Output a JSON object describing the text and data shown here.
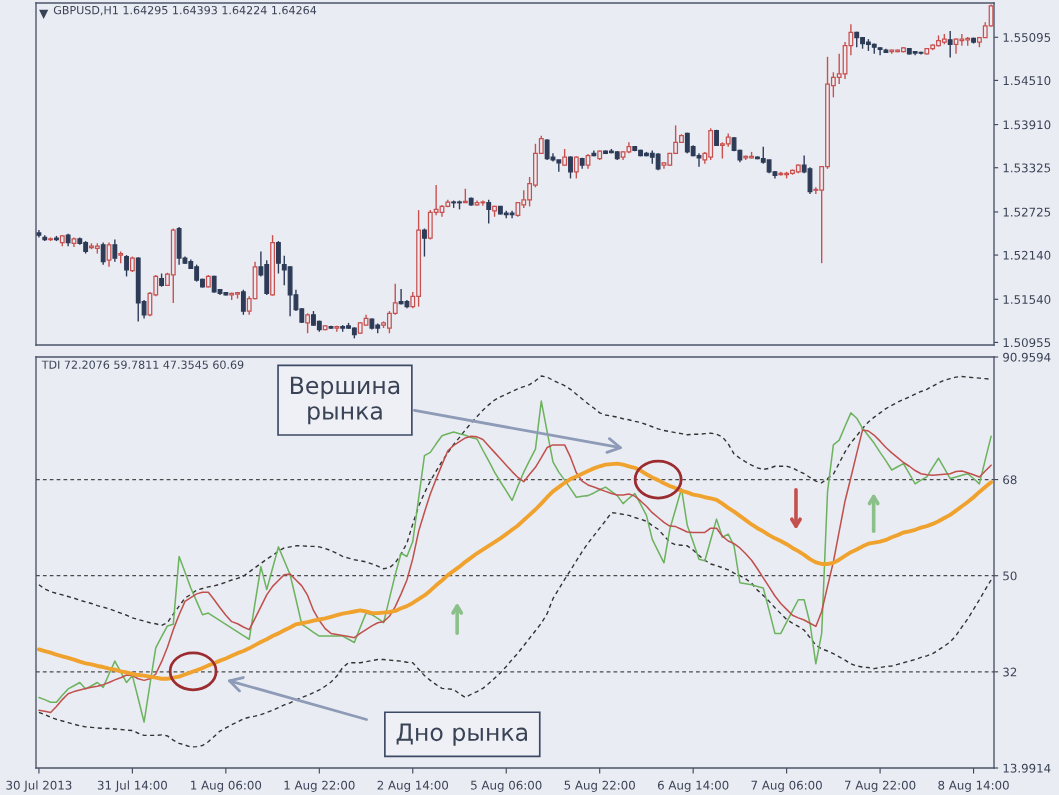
{
  "chart_data": [
    {
      "type": "candlestick",
      "title": "GBPUSD,H1 1.64295 1.64393 1.64224 1.64264",
      "categories": [
        null,
        null,
        null,
        null,
        null,
        null,
        null,
        null,
        null,
        null,
        null,
        null,
        null,
        null,
        null,
        null,
        null,
        null,
        null,
        null,
        null,
        null,
        null,
        null,
        null,
        null,
        null,
        null,
        null,
        null,
        null,
        null,
        null,
        null,
        null,
        null,
        null,
        null,
        null,
        null,
        null,
        null,
        null,
        null,
        null,
        null,
        null,
        null,
        null,
        null,
        null,
        null,
        null,
        null,
        null,
        null,
        null,
        null,
        null,
        null,
        null,
        null,
        null,
        null,
        null,
        null,
        null,
        null,
        null,
        null,
        null,
        null,
        null,
        null,
        null,
        null,
        null,
        null,
        null,
        null,
        null,
        null,
        null,
        null,
        null,
        null,
        null,
        null,
        null,
        null,
        null,
        null,
        null,
        null,
        null,
        null,
        null,
        null,
        null,
        null,
        null,
        null,
        null,
        null,
        null,
        null,
        null,
        null,
        null,
        null,
        null,
        null,
        null,
        null,
        null,
        null,
        null,
        null,
        null,
        null,
        null,
        null,
        null,
        null,
        null,
        null,
        null,
        null,
        null,
        null,
        null,
        null,
        null,
        null,
        null,
        null,
        null,
        null,
        null,
        null,
        null,
        null,
        null,
        null,
        null,
        null,
        null,
        null,
        null,
        null,
        null,
        null,
        null,
        null,
        null,
        null,
        null,
        null,
        null,
        null,
        null,
        null,
        null,
        null
      ],
      "ohlc": [
        [
          1.5244,
          1.5248,
          1.5238,
          1.5241
        ],
        [
          1.5238,
          1.5241,
          1.5233,
          1.5235
        ],
        [
          1.5235,
          1.5238,
          1.5233,
          1.5236
        ],
        [
          1.5237,
          1.524,
          1.5233,
          1.5235
        ],
        [
          1.5231,
          1.5241,
          1.5226,
          1.524
        ],
        [
          1.5241,
          1.5243,
          1.5226,
          1.5231
        ],
        [
          1.523,
          1.5238,
          1.5225,
          1.5236
        ],
        [
          1.5236,
          1.5238,
          1.5228,
          1.523
        ],
        [
          1.5231,
          1.5233,
          1.5216,
          1.5219
        ],
        [
          1.5224,
          1.523,
          1.5222,
          1.5226
        ],
        [
          1.5223,
          1.523,
          1.5216,
          1.5226
        ],
        [
          1.5228,
          1.5231,
          1.5201,
          1.5205
        ],
        [
          1.5207,
          1.5231,
          1.5198,
          1.5228
        ],
        [
          1.5228,
          1.5235,
          1.5205,
          1.521
        ],
        [
          1.5214,
          1.5219,
          1.5203,
          1.5216
        ],
        [
          1.5212,
          1.5214,
          1.5185,
          1.5194
        ],
        [
          1.5193,
          1.5212,
          1.5191,
          1.521
        ],
        [
          1.521,
          1.5211,
          1.5124,
          1.5149
        ],
        [
          1.5151,
          1.5153,
          1.5128,
          1.5133
        ],
        [
          1.5133,
          1.5164,
          1.5131,
          1.5162
        ],
        [
          1.516,
          1.5187,
          1.5158,
          1.5185
        ],
        [
          1.5182,
          1.5189,
          1.5171,
          1.5173
        ],
        [
          1.5173,
          1.519,
          1.5172,
          1.5188
        ],
        [
          1.5187,
          1.525,
          1.5149,
          1.5248
        ],
        [
          1.525,
          1.5252,
          1.5201,
          1.521
        ],
        [
          1.521,
          1.5212,
          1.5202,
          1.5203
        ],
        [
          1.5205,
          1.5208,
          1.5195,
          1.5196
        ],
        [
          1.5198,
          1.5201,
          1.5178,
          1.518
        ],
        [
          1.5181,
          1.5182,
          1.517,
          1.5171
        ],
        [
          1.5171,
          1.5187,
          1.517,
          1.5185
        ],
        [
          1.5185,
          1.5186,
          1.5163,
          1.5164
        ],
        [
          1.5167,
          1.5168,
          1.516,
          1.5162
        ],
        [
          1.5163,
          1.5164,
          1.5159,
          1.516
        ],
        [
          1.516,
          1.5163,
          1.5153,
          1.5162
        ],
        [
          1.5161,
          1.5164,
          1.5155,
          1.5163
        ],
        [
          1.5164,
          1.5167,
          1.5133,
          1.5138
        ],
        [
          1.5138,
          1.5158,
          1.5133,
          1.5155
        ],
        [
          1.5155,
          1.5205,
          1.5154,
          1.5198
        ],
        [
          1.5198,
          1.5219,
          1.5185,
          1.5187
        ],
        [
          1.5201,
          1.5207,
          1.516,
          1.5162
        ],
        [
          1.516,
          1.5241,
          1.5159,
          1.5231
        ],
        [
          1.5231,
          1.5233,
          1.5189,
          1.5203
        ],
        [
          1.5201,
          1.5213,
          1.5173,
          1.5194
        ],
        [
          1.5198,
          1.5199,
          1.5131,
          1.516
        ],
        [
          1.516,
          1.5167,
          1.5138,
          1.514
        ],
        [
          1.5141,
          1.5142,
          1.5122,
          1.5123
        ],
        [
          1.5122,
          1.5135,
          1.5108,
          1.5133
        ],
        [
          1.5133,
          1.5138,
          1.5118,
          1.5119
        ],
        [
          1.5124,
          1.5125,
          1.511,
          1.5113
        ],
        [
          1.5113,
          1.5119,
          1.5112,
          1.5118
        ],
        [
          1.5117,
          1.5118,
          1.5114,
          1.5115
        ],
        [
          1.5115,
          1.5118,
          1.511,
          1.5117
        ],
        [
          1.5117,
          1.5119,
          1.511,
          1.5115
        ],
        [
          1.5118,
          1.5122,
          1.5114,
          1.5115
        ],
        [
          1.5115,
          1.5116,
          1.5101,
          1.5106
        ],
        [
          1.5108,
          1.5123,
          1.5107,
          1.5122
        ],
        [
          1.5119,
          1.5133,
          1.5118,
          1.5128
        ],
        [
          1.5127,
          1.5128,
          1.5113,
          1.5115
        ],
        [
          1.5119,
          1.5121,
          1.5108,
          1.5115
        ],
        [
          1.5119,
          1.5124,
          1.5115,
          1.5122
        ],
        [
          1.5115,
          1.5138,
          1.5108,
          1.5135
        ],
        [
          1.5135,
          1.5175,
          1.5133,
          1.5149
        ],
        [
          1.5151,
          1.5168,
          1.5147,
          1.5148
        ],
        [
          1.5151,
          1.5153,
          1.5142,
          1.5144
        ],
        [
          1.5144,
          1.5164,
          1.5142,
          1.5158
        ],
        [
          1.5158,
          1.5275,
          1.5144,
          1.5248
        ],
        [
          1.5248,
          1.525,
          1.5212,
          1.5237
        ],
        [
          1.5237,
          1.5275,
          1.5235,
          1.5272
        ],
        [
          1.5272,
          1.5309,
          1.5268,
          1.5276
        ],
        [
          1.5272,
          1.5282,
          1.5266,
          1.528
        ],
        [
          1.528,
          1.5289,
          1.5279,
          1.5286
        ],
        [
          1.5286,
          1.5288,
          1.5278,
          1.5285
        ],
        [
          1.5286,
          1.5288,
          1.5276,
          1.5285
        ],
        [
          1.5285,
          1.5304,
          1.5285,
          1.5287
        ],
        [
          1.5291,
          1.5292,
          1.5281,
          1.5282
        ],
        [
          1.5282,
          1.5288,
          1.5281,
          1.5285
        ],
        [
          1.5285,
          1.5288,
          1.5281,
          1.5286
        ],
        [
          1.5285,
          1.5289,
          1.5257,
          1.5276
        ],
        [
          1.5274,
          1.5281,
          1.5266,
          1.528
        ],
        [
          1.528,
          1.528,
          1.5269,
          1.527
        ],
        [
          1.5271,
          1.5274,
          1.5264,
          1.5269
        ],
        [
          1.5271,
          1.5274,
          1.5264,
          1.5269
        ],
        [
          1.5268,
          1.5286,
          1.5266,
          1.5285
        ],
        [
          1.5282,
          1.5302,
          1.5278,
          1.5289
        ],
        [
          1.5289,
          1.532,
          1.528,
          1.5311
        ],
        [
          1.5309,
          1.5365,
          1.5306,
          1.5352
        ],
        [
          1.5352,
          1.5376,
          1.5351,
          1.5372
        ],
        [
          1.537,
          1.5371,
          1.5343,
          1.5345
        ],
        [
          1.5347,
          1.5352,
          1.5341,
          1.5343
        ],
        [
          1.5343,
          1.5343,
          1.5327,
          1.5339
        ],
        [
          1.5336,
          1.5358,
          1.5335,
          1.5347
        ],
        [
          1.5347,
          1.5348,
          1.5318,
          1.5327
        ],
        [
          1.5327,
          1.5348,
          1.5318,
          1.5347
        ],
        [
          1.5345,
          1.5346,
          1.5331,
          1.5336
        ],
        [
          1.5336,
          1.5351,
          1.5331,
          1.5349
        ],
        [
          1.5352,
          1.5356,
          1.5348,
          1.5349
        ],
        [
          1.5345,
          1.5356,
          1.5343,
          1.5355
        ],
        [
          1.5355,
          1.5356,
          1.5351,
          1.5352
        ],
        [
          1.5355,
          1.5358,
          1.5352,
          1.5353
        ],
        [
          1.5354,
          1.5355,
          1.5343,
          1.5345
        ],
        [
          1.5347,
          1.5355,
          1.5343,
          1.5354
        ],
        [
          1.5354,
          1.5367,
          1.5352,
          1.5361
        ],
        [
          1.5361,
          1.5362,
          1.5355,
          1.5356
        ],
        [
          1.5356,
          1.5357,
          1.5348,
          1.5349
        ],
        [
          1.5352,
          1.5354,
          1.5348,
          1.5349
        ],
        [
          1.5352,
          1.5356,
          1.5338,
          1.5347
        ],
        [
          1.5351,
          1.5352,
          1.5329,
          1.5331
        ],
        [
          1.5336,
          1.534,
          1.5331,
          1.5339
        ],
        [
          1.5336,
          1.5352,
          1.5335,
          1.5352
        ],
        [
          1.5352,
          1.539,
          1.5351,
          1.5367
        ],
        [
          1.5367,
          1.5378,
          1.5366,
          1.5376
        ],
        [
          1.5379,
          1.538,
          1.5352,
          1.5354
        ],
        [
          1.5361,
          1.5363,
          1.5348,
          1.5349
        ],
        [
          1.5349,
          1.5352,
          1.5334,
          1.5346
        ],
        [
          1.5343,
          1.5354,
          1.5338,
          1.5352
        ],
        [
          1.5347,
          1.5386,
          1.5343,
          1.5383
        ],
        [
          1.5383,
          1.5384,
          1.5362,
          1.5363
        ],
        [
          1.5363,
          1.5367,
          1.5345,
          1.5365
        ],
        [
          1.5365,
          1.5379,
          1.5361,
          1.5374
        ],
        [
          1.5373,
          1.5374,
          1.5355,
          1.5356
        ],
        [
          1.5356,
          1.5357,
          1.534,
          1.5343
        ],
        [
          1.5346,
          1.5349,
          1.5343,
          1.5348
        ],
        [
          1.5346,
          1.5354,
          1.5345,
          1.5348
        ],
        [
          1.5347,
          1.5348,
          1.5344,
          1.5345
        ],
        [
          1.5345,
          1.5361,
          1.5338,
          1.534
        ],
        [
          1.5343,
          1.5343,
          1.5325,
          1.5327
        ],
        [
          1.5327,
          1.5328,
          1.5318,
          1.5322
        ],
        [
          1.5323,
          1.5327,
          1.5322,
          1.5325
        ],
        [
          1.5323,
          1.5327,
          1.5318,
          1.5325
        ],
        [
          1.5325,
          1.533,
          1.5323,
          1.5329
        ],
        [
          1.5327,
          1.5337,
          1.5325,
          1.5336
        ],
        [
          1.5336,
          1.5349,
          1.5325,
          1.5327
        ],
        [
          1.5331,
          1.5333,
          1.5297,
          1.53
        ],
        [
          1.5302,
          1.5306,
          1.5297,
          1.5303
        ],
        [
          1.5302,
          1.5334,
          1.5203,
          1.5334
        ],
        [
          1.5334,
          1.5483,
          1.5331,
          1.5446
        ],
        [
          1.5444,
          1.5462,
          1.5428,
          1.5455
        ],
        [
          1.5455,
          1.5487,
          1.5446,
          1.546
        ],
        [
          1.546,
          1.5503,
          1.5453,
          1.5498
        ],
        [
          1.5498,
          1.5527,
          1.5485,
          1.5516
        ],
        [
          1.5516,
          1.5517,
          1.5496,
          1.5509
        ],
        [
          1.5509,
          1.5509,
          1.5494,
          1.5501
        ],
        [
          1.5503,
          1.5507,
          1.5491,
          1.55
        ],
        [
          1.55,
          1.5501,
          1.5487,
          1.5496
        ],
        [
          1.5495,
          1.5496,
          1.5485,
          1.5493
        ],
        [
          1.5492,
          1.5494,
          1.5488,
          1.5489
        ],
        [
          1.549,
          1.5493,
          1.5487,
          1.5492
        ],
        [
          1.549,
          1.5493,
          1.5489,
          1.5492
        ],
        [
          1.549,
          1.5496,
          1.5489,
          1.5495
        ],
        [
          1.5494,
          1.5495,
          1.5486,
          1.5487
        ],
        [
          1.549,
          1.5491,
          1.5485,
          1.5488
        ],
        [
          1.5489,
          1.549,
          1.5486,
          1.5488
        ],
        [
          1.5487,
          1.5495,
          1.5486,
          1.5494
        ],
        [
          1.5494,
          1.55,
          1.5492,
          1.5499
        ],
        [
          1.5498,
          1.5512,
          1.5497,
          1.5505
        ],
        [
          1.5503,
          1.5514,
          1.55,
          1.5507
        ],
        [
          1.5506,
          1.5518,
          1.5482,
          1.55
        ],
        [
          1.55,
          1.5508,
          1.5487,
          1.5507
        ],
        [
          1.5505,
          1.5514,
          1.5498,
          1.5507
        ],
        [
          1.5506,
          1.551,
          1.5498,
          1.5508
        ],
        [
          1.5508,
          1.5509,
          1.5501,
          1.5503
        ],
        [
          1.5503,
          1.551,
          1.5496,
          1.5509
        ],
        [
          1.5509,
          1.553,
          1.5509,
          1.5525
        ],
        [
          1.5525,
          1.5554,
          1.5524,
          1.5552
        ]
      ],
      "colors": [
        "#2d3b57",
        "#2d3b57",
        "#c8504e",
        "#2d3b57",
        "#c8504e",
        "#2d3b57",
        "#c8504e",
        "#2d3b57",
        "#2d3b57",
        "#c8504e",
        "#c8504e",
        "#2d3b57",
        "#c8504e",
        "#2d3b57",
        "#c8504e",
        "#2d3b57",
        "#c8504e",
        "#2d3b57",
        "#2d3b57",
        "#c8504e",
        "#c8504e",
        "#2d3b57",
        "#c8504e",
        "#c8504e",
        "#2d3b57",
        "#2d3b57",
        "#2d3b57",
        "#2d3b57",
        "#2d3b57",
        "#c8504e",
        "#2d3b57",
        "#2d3b57",
        "#2d3b57",
        "#c8504e",
        "#c8504e",
        "#2d3b57",
        "#c8504e",
        "#c8504e",
        "#2d3b57",
        "#2d3b57",
        "#c8504e",
        "#2d3b57",
        "#2d3b57",
        "#2d3b57",
        "#2d3b57",
        "#2d3b57",
        "#c8504e",
        "#2d3b57",
        "#2d3b57",
        "#c8504e",
        "#2d3b57",
        "#c8504e",
        "#2d3b57",
        "#2d3b57",
        "#2d3b57",
        "#c8504e",
        "#c8504e",
        "#2d3b57",
        "#2d3b57",
        "#c8504e",
        "#c8504e",
        "#c8504e",
        "#2d3b57",
        "#2d3b57",
        "#c8504e",
        "#c8504e",
        "#2d3b57",
        "#c8504e",
        "#c8504e",
        "#c8504e",
        "#c8504e",
        "#2d3b57",
        "#2d3b57",
        "#c8504e",
        "#2d3b57",
        "#c8504e",
        "#c8504e",
        "#2d3b57",
        "#c8504e",
        "#2d3b57",
        "#2d3b57",
        "#2d3b57",
        "#c8504e",
        "#c8504e",
        "#c8504e",
        "#c8504e",
        "#c8504e",
        "#2d3b57",
        "#2d3b57",
        "#2d3b57",
        "#c8504e",
        "#2d3b57",
        "#c8504e",
        "#2d3b57",
        "#c8504e",
        "#2d3b57",
        "#c8504e",
        "#2d3b57",
        "#2d3b57",
        "#2d3b57",
        "#c8504e",
        "#c8504e",
        "#2d3b57",
        "#2d3b57",
        "#2d3b57",
        "#2d3b57",
        "#2d3b57",
        "#c8504e",
        "#c8504e",
        "#c8504e",
        "#c8504e",
        "#2d3b57",
        "#2d3b57",
        "#2d3b57",
        "#c8504e",
        "#c8504e",
        "#2d3b57",
        "#c8504e",
        "#c8504e",
        "#2d3b57",
        "#2d3b57",
        "#c8504e",
        "#c8504e",
        "#2d3b57",
        "#2d3b57",
        "#2d3b57",
        "#2d3b57",
        "#c8504e",
        "#c8504e",
        "#c8504e",
        "#c8504e",
        "#2d3b57",
        "#2d3b57",
        "#c8504e",
        "#c8504e",
        "#c8504e",
        "#c8504e",
        "#c8504e",
        "#c8504e",
        "#c8504e",
        "#2d3b57",
        "#2d3b57",
        "#2d3b57",
        "#2d3b57",
        "#2d3b57",
        "#2d3b57",
        "#c8504e",
        "#c8504e",
        "#c8504e",
        "#2d3b57",
        "#2d3b57",
        "#2d3b57",
        "#c8504e",
        "#c8504e",
        "#c8504e",
        "#c8504e",
        "#2d3b57",
        "#c8504e",
        "#c8504e",
        "#c8504e",
        "#2d3b57",
        "#c8504e",
        "#c8504e",
        "#c8504e"
      ],
      "ylim": [
        1.5092,
        1.5556
      ],
      "yticks": [
        1.50955,
        {
          "value": 1.5154,
          "label": "1.51540"
        },
        {
          "value": 1.5214,
          "label": "1.52140"
        },
        1.52725,
        1.53325,
        {
          "value": 1.5391,
          "label": "1.53910"
        },
        {
          "value": 1.5451,
          "label": "1.54510"
        },
        1.55095
      ]
    },
    {
      "type": "line",
      "title": "TDI 72.2076 59.7811 47.3545 60.69",
      "categories": [
        "30 Jul 2013",
        null,
        null,
        null,
        null,
        null,
        null,
        null,
        null,
        null,
        null,
        null,
        null,
        null,
        null,
        null,
        "31 Jul 14:00",
        null,
        null,
        null,
        null,
        null,
        null,
        null,
        null,
        null,
        null,
        null,
        null,
        null,
        null,
        null,
        "1 Aug 06:00",
        null,
        null,
        null,
        null,
        null,
        null,
        null,
        null,
        null,
        null,
        null,
        null,
        null,
        null,
        null,
        "1 Aug 22:00",
        null,
        null,
        null,
        null,
        null,
        null,
        null,
        null,
        null,
        null,
        null,
        null,
        null,
        null,
        null,
        "2 Aug 14:00",
        null,
        null,
        null,
        null,
        null,
        null,
        null,
        null,
        null,
        null,
        null,
        null,
        null,
        null,
        null,
        "5 Aug 06:00",
        null,
        null,
        null,
        null,
        null,
        null,
        null,
        null,
        null,
        null,
        null,
        null,
        null,
        null,
        null,
        "5 Aug 22:00",
        null,
        null,
        null,
        null,
        null,
        null,
        null,
        null,
        null,
        null,
        null,
        null,
        null,
        null,
        null,
        "6 Aug 14:00",
        null,
        null,
        null,
        null,
        null,
        null,
        null,
        null,
        null,
        null,
        null,
        null,
        null,
        null,
        null,
        "7 Aug 06:00",
        null,
        null,
        null,
        null,
        null,
        null,
        null,
        null,
        null,
        null,
        null,
        null,
        null,
        null,
        null,
        "7 Aug 22:00",
        null,
        null,
        null,
        null,
        null,
        null,
        null,
        null,
        null,
        null,
        null,
        null,
        null,
        null,
        null,
        "8 Aug 14:00",
        null,
        null,
        null
      ],
      "series": [
        {
          "color": "#333333",
          "line_style": "dashed",
          "values": [
            48.3,
            47.5,
            47.0,
            46.7,
            46.4,
            46.1,
            45.8,
            45.4,
            45.1,
            44.8,
            44.4,
            44.1,
            43.8,
            43.4,
            43.0,
            42.6,
            42.1,
            41.8,
            41.5,
            41.2,
            41.0,
            40.7,
            41.2,
            42.8,
            44.3,
            45.8,
            46.5,
            47.3,
            47.6,
            47.9,
            48.1,
            48.4,
            48.8,
            49.2,
            49.5,
            49.9,
            50.7,
            51.5,
            52.3,
            53.1,
            53.8,
            54.6,
            55.2,
            55.4,
            55.6,
            55.6,
            55.5,
            55.5,
            55.4,
            55.1,
            54.7,
            54.2,
            53.6,
            53.3,
            53.0,
            52.8,
            52.6,
            52.2,
            51.8,
            51.3,
            51.5,
            52.4,
            54.1,
            56.1,
            59.7,
            63.0,
            65.5,
            67.7,
            69.6,
            71.4,
            73.0,
            74.6,
            75.9,
            77.3,
            78.6,
            79.8,
            81.0,
            82.0,
            82.9,
            83.5,
            84.0,
            84.5,
            85.0,
            85.4,
            85.8,
            86.5,
            87.4,
            87.2,
            86.6,
            86.1,
            85.6,
            84.9,
            84.0,
            83.1,
            82.2,
            81.4,
            80.5,
            80.1,
            79.9,
            79.7,
            79.4,
            79.2,
            78.9,
            78.7,
            78.3,
            77.9,
            77.5,
            77.2,
            77.0,
            76.8,
            76.6,
            76.4,
            76.5,
            76.5,
            76.6,
            76.7,
            76.5,
            76.0,
            74.7,
            72.8,
            72.0,
            71.3,
            70.7,
            70.2,
            69.9,
            70.1,
            70.5,
            70.5,
            70.5,
            70.2,
            69.6,
            69.1,
            68.4,
            67.7,
            67.4,
            68.2,
            69.0,
            71.1,
            73.2,
            74.9,
            76.2,
            77.6,
            78.8,
            79.7,
            80.5,
            81.3,
            81.9,
            82.5,
            83.0,
            83.5,
            84.0,
            84.5,
            84.9,
            85.5,
            86.1,
            86.6,
            86.9,
            87.2,
            87.3,
            87.2,
            87.1,
            87.0,
            86.9,
            86.8
          ]
        },
        {
          "color": "#333333",
          "line_style": "dashed",
          "values": [
            24.4,
            24.0,
            23.5,
            23.1,
            22.8,
            22.5,
            22.2,
            21.9,
            21.7,
            21.6,
            21.5,
            21.4,
            21.4,
            21.3,
            21.2,
            21.1,
            21.0,
            20.5,
            20.1,
            20.1,
            20.1,
            20.2,
            20.0,
            19.2,
            18.6,
            18.3,
            17.9,
            18.0,
            18.2,
            18.9,
            19.9,
            20.9,
            21.5,
            22.1,
            22.6,
            23.2,
            23.5,
            23.7,
            24.0,
            24.4,
            24.8,
            25.3,
            25.8,
            26.2,
            26.7,
            27.2,
            27.6,
            28.1,
            28.6,
            29.3,
            30.1,
            31.2,
            32.8,
            33.7,
            33.7,
            33.7,
            33.9,
            34.1,
            34.3,
            34.3,
            34.2,
            34.1,
            34.0,
            33.8,
            33.7,
            32.5,
            31.3,
            30.4,
            29.6,
            28.9,
            28.8,
            28.7,
            27.9,
            27.2,
            27.8,
            28.3,
            28.9,
            29.8,
            30.8,
            31.8,
            33.0,
            34.3,
            35.5,
            36.9,
            38.3,
            39.7,
            41.1,
            42.9,
            45.7,
            47.5,
            49.3,
            51.0,
            52.8,
            54.5,
            56.1,
            57.5,
            58.9,
            60.3,
            61.8,
            61.7,
            61.5,
            61.3,
            60.9,
            60.6,
            60.2,
            59.4,
            58.7,
            57.5,
            56.3,
            55.8,
            55.7,
            55.6,
            54.8,
            53.8,
            52.9,
            52.2,
            51.9,
            51.5,
            51.1,
            50.5,
            50.0,
            49.4,
            48.6,
            47.3,
            46.3,
            45.2,
            44.0,
            42.9,
            41.8,
            41.1,
            40.5,
            39.8,
            38.4,
            37.0,
            36.3,
            35.9,
            35.4,
            34.8,
            34.2,
            33.5,
            33.1,
            32.9,
            32.8,
            32.6,
            32.8,
            33.0,
            33.1,
            33.4,
            33.7,
            34.0,
            34.3,
            34.7,
            35.0,
            35.4,
            36.1,
            36.8,
            37.6,
            38.8,
            40.4,
            41.9,
            43.7,
            45.5,
            47.4,
            49.2
          ]
        },
        {
          "color": "#6db35f",
          "values": [
            27.2,
            26.8,
            26.3,
            26.3,
            27.6,
            28.8,
            29.4,
            30.0,
            28.8,
            29.4,
            30.0,
            29.1,
            31.6,
            34.0,
            32.0,
            30.0,
            31.3,
            27.0,
            22.6,
            29.6,
            36.5,
            38.6,
            40.6,
            40.9,
            53.6,
            50.7,
            47.7,
            45.2,
            42.7,
            43.0,
            42.3,
            41.6,
            40.9,
            40.2,
            39.5,
            38.8,
            38.1,
            44.9,
            51.7,
            47.4,
            51.4,
            55.4,
            52.8,
            50.2,
            45.6,
            40.9,
            40.2,
            39.4,
            38.7,
            38.7,
            38.7,
            38.7,
            38.7,
            38.1,
            37.5,
            40.3,
            43.0,
            42.7,
            42.0,
            41.2,
            45.7,
            50.2,
            54.2,
            53.6,
            56.4,
            64.5,
            72.5,
            73.1,
            74.7,
            76.2,
            76.6,
            76.9,
            76.6,
            76.3,
            75.9,
            75.6,
            73.5,
            71.5,
            69.4,
            67.6,
            65.9,
            64.1,
            66.8,
            69.4,
            71.6,
            73.7,
            82.7,
            77.0,
            71.3,
            69.4,
            67.9,
            66.3,
            64.7,
            64.9,
            65.0,
            65.5,
            66.1,
            66.6,
            65.8,
            65.0,
            63.5,
            64.5,
            65.4,
            63.4,
            61.3,
            56.8,
            54.6,
            52.4,
            58.7,
            62.5,
            66.3,
            59.4,
            56.3,
            53.1,
            52.8,
            56.7,
            60.6,
            57.2,
            57.8,
            55.6,
            48.7,
            48.5,
            48.3,
            48.0,
            47.7,
            43.5,
            39.2,
            39.2,
            41.3,
            43.4,
            45.5,
            45.5,
            41.1,
            33.5,
            39.2,
            65.7,
            74.5,
            75.4,
            78.0,
            80.5,
            79.5,
            77.6,
            76.2,
            74.8,
            73.1,
            71.5,
            69.8,
            70.4,
            71.0,
            69.1,
            67.2,
            67.9,
            68.5,
            70.3,
            72.0,
            70.1,
            68.2,
            68.5,
            68.8,
            69.1,
            68.2,
            67.2,
            71.7,
            76.1
          ]
        },
        {
          "color": "#c0504d",
          "values": [
            24.8,
            24.6,
            24.4,
            25.5,
            26.8,
            27.9,
            28.3,
            28.6,
            28.9,
            29.1,
            29.3,
            29.6,
            30.0,
            30.5,
            30.9,
            31.4,
            31.3,
            30.7,
            30.4,
            30.7,
            31.6,
            33.9,
            36.6,
            39.9,
            42.7,
            45.2,
            45.9,
            46.6,
            46.9,
            46.9,
            45.5,
            44.0,
            42.6,
            41.4,
            41.0,
            40.4,
            39.9,
            42.0,
            44.2,
            46.4,
            48.0,
            49.1,
            50.2,
            50.3,
            49.2,
            48.1,
            46.3,
            43.5,
            41.6,
            40.1,
            39.2,
            39.0,
            38.8,
            38.6,
            38.4,
            39.2,
            39.9,
            40.6,
            41.2,
            41.4,
            42.4,
            44.2,
            46.6,
            49.2,
            53.2,
            58.3,
            61.9,
            65.3,
            68.1,
            70.8,
            73.4,
            74.4,
            75.1,
            75.8,
            76.1,
            76.0,
            75.5,
            74.3,
            73.1,
            71.9,
            70.7,
            69.5,
            68.4,
            67.6,
            69.0,
            70.3,
            72.1,
            74.0,
            74.5,
            74.5,
            74.5,
            72.2,
            69.3,
            67.7,
            67.0,
            66.6,
            66.2,
            65.8,
            65.4,
            65.1,
            65.1,
            65.3,
            64.9,
            64.0,
            63.0,
            61.8,
            60.9,
            60.0,
            59.3,
            59.2,
            58.7,
            58.2,
            58.1,
            58.1,
            58.1,
            58.9,
            58.9,
            57.4,
            56.5,
            56.0,
            55.2,
            54.1,
            52.9,
            51.3,
            49.6,
            47.9,
            46.2,
            44.8,
            43.7,
            42.6,
            42.1,
            41.7,
            41.1,
            40.5,
            43.3,
            48.0,
            52.6,
            58.3,
            64.0,
            68.4,
            72.9,
            77.3,
            77.1,
            76.3,
            75.2,
            74.0,
            73.0,
            72.1,
            71.2,
            70.5,
            69.7,
            69.1,
            68.9,
            68.8,
            68.9,
            69.0,
            69.1,
            69.5,
            69.6,
            69.3,
            68.9,
            68.5,
            69.6,
            70.7
          ]
        },
        {
          "color": "#f0a22e",
          "values": [
            36.2,
            35.9,
            35.6,
            35.2,
            34.9,
            34.6,
            34.3,
            33.9,
            33.6,
            33.4,
            33.1,
            32.9,
            32.6,
            32.4,
            32.1,
            31.9,
            31.6,
            31.4,
            31.3,
            31.1,
            30.9,
            30.7,
            30.7,
            30.9,
            31.1,
            31.5,
            31.9,
            32.3,
            32.7,
            33.2,
            33.6,
            34.1,
            34.5,
            35.0,
            35.5,
            35.9,
            36.4,
            37.0,
            37.6,
            38.1,
            38.7,
            39.2,
            39.8,
            40.3,
            40.9,
            41.1,
            41.3,
            41.6,
            41.8,
            42.0,
            42.3,
            42.6,
            42.9,
            43.1,
            43.3,
            43.5,
            43.3,
            43.0,
            43.0,
            43.1,
            43.2,
            43.4,
            43.9,
            44.3,
            44.9,
            45.6,
            46.3,
            47.2,
            48.2,
            49.1,
            50.1,
            50.9,
            51.7,
            52.6,
            53.4,
            54.2,
            54.9,
            55.6,
            56.3,
            57.0,
            57.8,
            58.6,
            59.4,
            60.4,
            61.4,
            62.4,
            63.5,
            64.7,
            65.8,
            66.6,
            67.4,
            68.1,
            68.6,
            69.1,
            69.6,
            70.1,
            70.5,
            70.8,
            70.9,
            71.0,
            70.8,
            70.5,
            70.2,
            69.7,
            69.0,
            68.4,
            67.9,
            67.3,
            66.8,
            66.4,
            65.9,
            65.6,
            65.2,
            65.0,
            64.7,
            64.5,
            64.2,
            63.5,
            62.7,
            62.0,
            61.2,
            60.4,
            59.6,
            58.9,
            58.3,
            57.6,
            57.0,
            56.5,
            55.9,
            55.2,
            54.6,
            53.9,
            53.1,
            52.5,
            52.2,
            52.2,
            52.4,
            53.0,
            53.7,
            54.4,
            54.9,
            55.5,
            56.0,
            56.2,
            56.4,
            56.7,
            57.2,
            57.6,
            58.1,
            58.3,
            58.6,
            59.0,
            59.3,
            59.7,
            60.2,
            60.8,
            61.4,
            62.2,
            63.0,
            63.8,
            64.7,
            65.7,
            66.6,
            67.5
          ]
        }
      ],
      "ylim": [
        13.9914,
        90.9594
      ],
      "yticks": [
        13.9914,
        32,
        50,
        68,
        90.9594
      ],
      "ref_lines": [
        {
          "axis": "y",
          "value": 68,
          "color": "#4a4a4a",
          "line_style": "dashed"
        },
        {
          "axis": "y",
          "value": 50,
          "color": "#4a4a4a",
          "line_style": "dashed"
        },
        {
          "axis": "y",
          "value": 32,
          "color": "#4a4a4a",
          "line_style": "dashed"
        }
      ],
      "annotations": [
        "Вершина\nрынка",
        "Дно рынка"
      ]
    }
  ]
}
